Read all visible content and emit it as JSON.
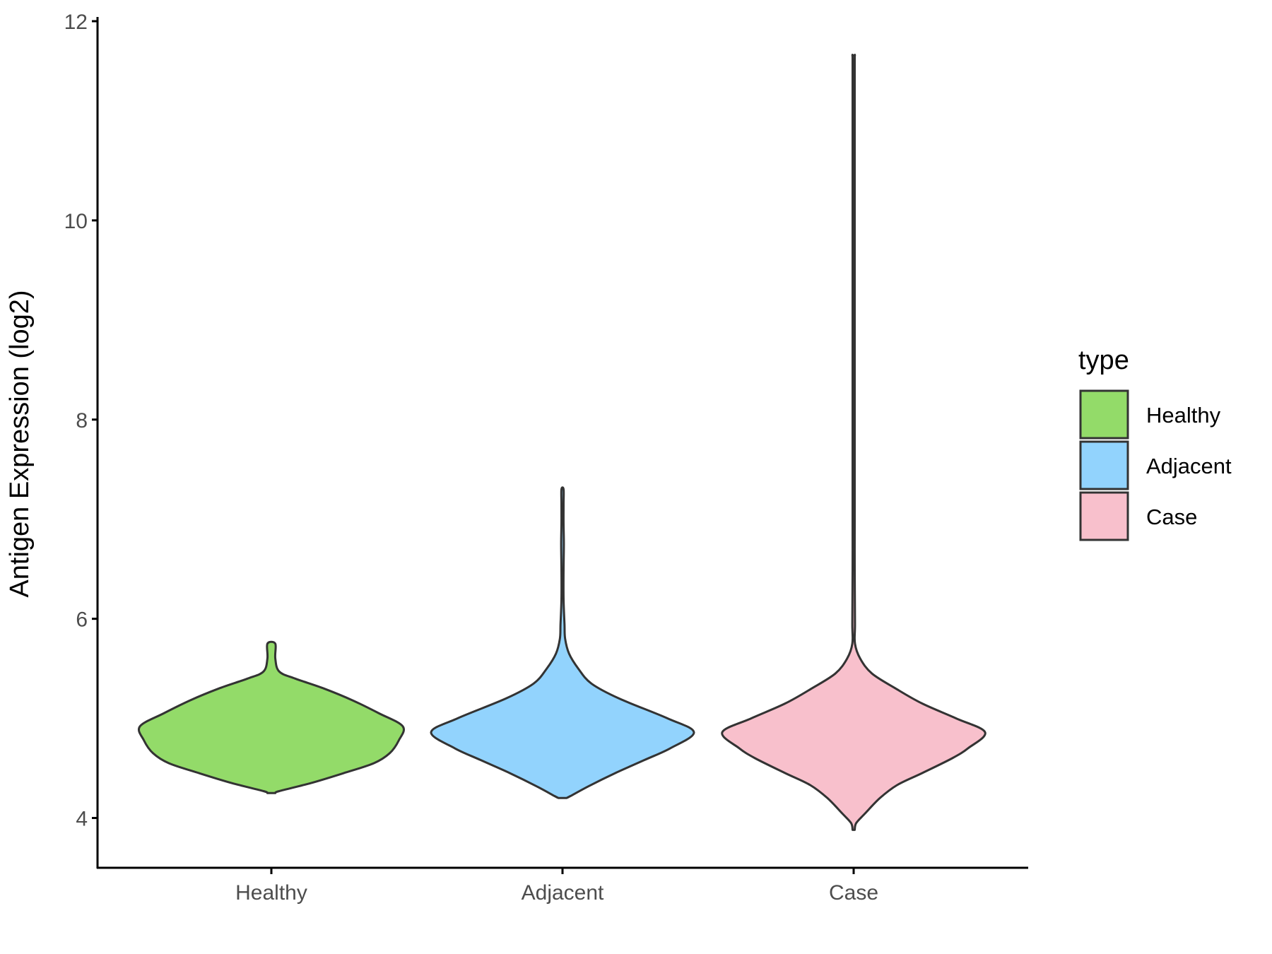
{
  "chart_data": {
    "type": "violin",
    "ylabel": "Antigen Expression (log2)",
    "xlabel": "",
    "ylim": [
      3.5,
      12
    ],
    "yticks": [
      4,
      6,
      8,
      10,
      12
    ],
    "grid": false,
    "categories": [
      "Healthy",
      "Adjacent",
      "Case"
    ],
    "legend": {
      "title": "type",
      "placement": "right",
      "entries": [
        "Healthy",
        "Adjacent",
        "Case"
      ]
    },
    "series": [
      {
        "name": "Healthy",
        "color": "#93db69",
        "profile": [
          [
            4.25,
            0.03
          ],
          [
            4.27,
            0.06
          ],
          [
            4.35,
            0.3
          ],
          [
            4.45,
            0.55
          ],
          [
            4.55,
            0.78
          ],
          [
            4.65,
            0.9
          ],
          [
            4.78,
            0.97
          ],
          [
            4.92,
            1.0
          ],
          [
            5.05,
            0.82
          ],
          [
            5.18,
            0.62
          ],
          [
            5.3,
            0.4
          ],
          [
            5.4,
            0.18
          ],
          [
            5.47,
            0.06
          ],
          [
            5.6,
            0.03
          ],
          [
            5.75,
            0.03
          ]
        ]
      },
      {
        "name": "Adjacent",
        "color": "#92d3fd",
        "profile": [
          [
            4.2,
            0.03
          ],
          [
            4.22,
            0.06
          ],
          [
            4.32,
            0.2
          ],
          [
            4.45,
            0.4
          ],
          [
            4.58,
            0.62
          ],
          [
            4.7,
            0.82
          ],
          [
            4.86,
            1.0
          ],
          [
            5.0,
            0.8
          ],
          [
            5.2,
            0.43
          ],
          [
            5.35,
            0.22
          ],
          [
            5.5,
            0.12
          ],
          [
            5.65,
            0.05
          ],
          [
            5.8,
            0.02
          ],
          [
            5.95,
            0.015
          ],
          [
            6.2,
            0.005
          ],
          [
            6.5,
            0.004
          ],
          [
            6.75,
            0.01
          ],
          [
            6.95,
            0.004
          ],
          [
            7.15,
            0.006
          ],
          [
            7.3,
            0.006
          ]
        ]
      },
      {
        "name": "Case",
        "color": "#f8c0cc",
        "profile": [
          [
            3.88,
            0.0
          ],
          [
            3.95,
            0.02
          ],
          [
            4.05,
            0.09
          ],
          [
            4.2,
            0.2
          ],
          [
            4.33,
            0.33
          ],
          [
            4.45,
            0.52
          ],
          [
            4.6,
            0.75
          ],
          [
            4.7,
            0.87
          ],
          [
            4.86,
            1.0
          ],
          [
            5.0,
            0.78
          ],
          [
            5.15,
            0.52
          ],
          [
            5.3,
            0.32
          ],
          [
            5.45,
            0.14
          ],
          [
            5.6,
            0.05
          ],
          [
            5.75,
            0.01
          ],
          [
            5.95,
            0.01
          ],
          [
            6.5,
            0.004
          ],
          [
            7.0,
            0.004
          ],
          [
            7.7,
            0.004
          ],
          [
            8.4,
            0.007
          ],
          [
            8.8,
            0.004
          ],
          [
            9.3,
            0.007
          ],
          [
            9.9,
            0.005
          ],
          [
            10.5,
            0.004
          ],
          [
            11.0,
            0.006
          ],
          [
            11.6,
            0.004
          ],
          [
            11.65,
            0.002
          ]
        ]
      }
    ]
  }
}
